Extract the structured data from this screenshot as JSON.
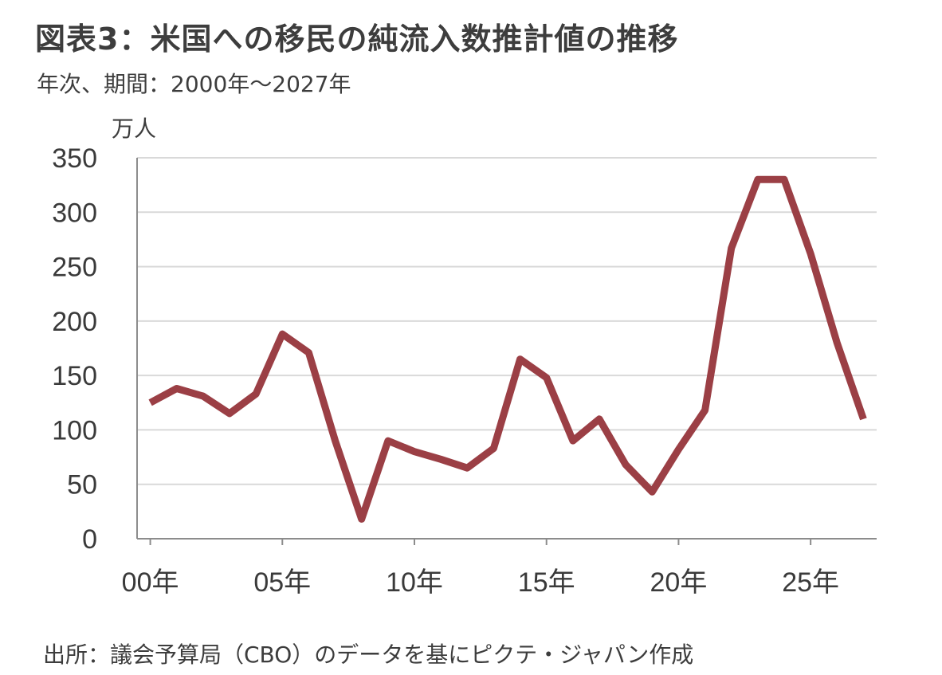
{
  "header": {
    "title": "図表3：米国への移民の純流入数推計値の推移",
    "subtitle": "年次、期間：2000年～2027年",
    "unit_label": "万人"
  },
  "footer": {
    "source": "出所：議会予算局（CBO）のデータを基にピクテ・ジャパン作成"
  },
  "chart_data": {
    "type": "line",
    "title": "図表3：米国への移民の純流入数推計値の推移",
    "subtitle": "年次、期間：2000年～2027年",
    "ylabel": "万人",
    "xlabel": "",
    "ylim": [
      0,
      350
    ],
    "yticks": [
      0,
      50,
      100,
      150,
      200,
      250,
      300,
      350
    ],
    "xlim": [
      2000,
      2027
    ],
    "xticks": [
      {
        "value": 2000,
        "label": "00年"
      },
      {
        "value": 2005,
        "label": "05年"
      },
      {
        "value": 2010,
        "label": "10年"
      },
      {
        "value": 2015,
        "label": "15年"
      },
      {
        "value": 2020,
        "label": "20年"
      },
      {
        "value": 2025,
        "label": "25年"
      }
    ],
    "grid": true,
    "x": [
      2000,
      2001,
      2002,
      2003,
      2004,
      2005,
      2006,
      2007,
      2008,
      2009,
      2010,
      2011,
      2012,
      2013,
      2014,
      2015,
      2016,
      2017,
      2018,
      2019,
      2020,
      2021,
      2022,
      2023,
      2024,
      2025,
      2026,
      2027
    ],
    "series": [
      {
        "values": [
          125,
          138,
          131,
          115,
          133,
          188,
          171,
          90,
          18,
          90,
          80,
          73,
          65,
          83,
          165,
          148,
          90,
          110,
          68,
          43,
          82,
          118,
          267,
          330,
          330,
          262,
          180,
          110
        ],
        "color": "#9b3f45"
      }
    ],
    "colors": {
      "line": "#9b3f45",
      "grid": "#d9d9d9",
      "axis": "#8c8c8c"
    }
  }
}
